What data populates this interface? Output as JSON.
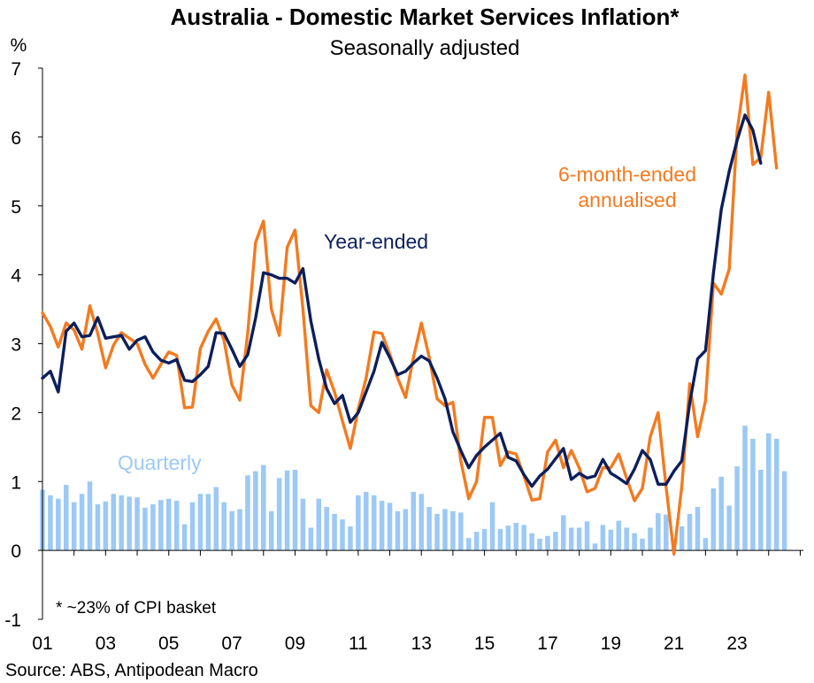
{
  "chart_data": {
    "type": "bar+line",
    "title": "Australia - Domestic Market Services Inflation*",
    "subtitle": "Seasonally adjusted",
    "ylabel": "%",
    "ylim": [
      -1,
      7
    ],
    "yticks": [
      "-1",
      "0",
      "1",
      "2",
      "3",
      "4",
      "5",
      "6",
      "7"
    ],
    "xlim": [
      2001,
      2025.1
    ],
    "xticks": [
      {
        "label": "01",
        "x": 2001
      },
      {
        "label": "03",
        "x": 2003
      },
      {
        "label": "05",
        "x": 2005
      },
      {
        "label": "07",
        "x": 2007
      },
      {
        "label": "09",
        "x": 2009
      },
      {
        "label": "11",
        "x": 2011
      },
      {
        "label": "13",
        "x": 2013
      },
      {
        "label": "15",
        "x": 2015
      },
      {
        "label": "17",
        "x": 2017
      },
      {
        "label": "19",
        "x": 2019
      },
      {
        "label": "21",
        "x": 2021
      },
      {
        "label": "23",
        "x": 2023
      }
    ],
    "footnote": "* ~23% of CPI basket",
    "source": "Source: ABS, Antipodean Macro",
    "series": [
      {
        "name": "Quarterly",
        "kind": "bar",
        "color": "#9cc9f5",
        "start": 2001.0,
        "step": 0.25,
        "values": [
          0.88,
          0.8,
          0.75,
          0.95,
          0.7,
          0.82,
          1.0,
          0.67,
          0.71,
          0.82,
          0.8,
          0.78,
          0.77,
          0.62,
          0.67,
          0.73,
          0.75,
          0.72,
          0.38,
          0.7,
          0.82,
          0.82,
          0.92,
          0.7,
          0.57,
          0.6,
          1.09,
          1.15,
          1.24,
          0.57,
          1.05,
          1.16,
          1.17,
          0.75,
          0.33,
          0.75,
          0.63,
          0.53,
          0.45,
          0.35,
          0.8,
          0.85,
          0.8,
          0.72,
          0.69,
          0.57,
          0.6,
          0.85,
          0.82,
          0.63,
          0.53,
          0.6,
          0.57,
          0.55,
          0.18,
          0.27,
          0.31,
          0.7,
          0.31,
          0.36,
          0.4,
          0.37,
          0.25,
          0.17,
          0.21,
          0.27,
          0.51,
          0.33,
          0.33,
          0.42,
          0.1,
          0.37,
          0.3,
          0.43,
          0.33,
          0.25,
          0.17,
          0.33,
          0.54,
          0.52,
          0.05,
          0.35,
          0.53,
          0.63,
          0.18,
          0.9,
          1.07,
          0.65,
          1.22,
          1.81,
          1.62,
          1.17,
          1.7,
          1.62,
          1.15
        ]
      },
      {
        "name": "6-month-ended annualised",
        "kind": "line",
        "color": "#f47a1f",
        "start": 2001.0,
        "step": 0.25,
        "values": [
          3.45,
          3.25,
          2.95,
          3.3,
          3.2,
          2.92,
          3.55,
          3.15,
          2.65,
          2.98,
          3.16,
          3.08,
          3.0,
          2.7,
          2.5,
          2.7,
          2.88,
          2.83,
          2.07,
          2.08,
          2.93,
          3.18,
          3.36,
          3.05,
          2.4,
          2.18,
          3.15,
          4.47,
          4.78,
          3.5,
          3.12,
          4.4,
          4.65,
          3.5,
          2.1,
          2.0,
          2.62,
          2.3,
          1.88,
          1.48,
          2.05,
          2.5,
          3.17,
          3.15,
          2.85,
          2.5,
          2.22,
          2.8,
          3.3,
          2.8,
          2.2,
          2.1,
          2.15,
          1.3,
          0.75,
          1.0,
          1.93,
          1.93,
          1.23,
          1.43,
          1.4,
          1.08,
          0.73,
          0.75,
          1.43,
          1.6,
          1.2,
          1.45,
          1.2,
          0.85,
          0.9,
          1.2,
          1.2,
          1.4,
          1.05,
          0.72,
          0.9,
          1.65,
          2.0,
          0.93,
          -0.05,
          0.93,
          2.42,
          1.65,
          2.17,
          3.88,
          3.72,
          4.08,
          6.08,
          6.9,
          5.6,
          5.7,
          6.65,
          5.55
        ]
      },
      {
        "name": "Year-ended",
        "kind": "line",
        "color": "#0c1f5c",
        "start": 2001.0,
        "step": 0.25,
        "values": [
          2.5,
          2.6,
          2.3,
          3.18,
          3.3,
          3.1,
          3.12,
          3.38,
          3.08,
          3.1,
          3.12,
          2.92,
          3.05,
          3.1,
          2.88,
          2.76,
          2.72,
          2.77,
          2.47,
          2.45,
          2.55,
          2.67,
          3.16,
          3.15,
          2.92,
          2.67,
          2.84,
          3.37,
          4.03,
          4.0,
          3.95,
          3.95,
          3.88,
          4.09,
          3.33,
          2.78,
          2.35,
          2.13,
          2.25,
          1.86,
          2.0,
          2.3,
          2.6,
          3.02,
          2.8,
          2.55,
          2.6,
          2.72,
          2.82,
          2.75,
          2.5,
          2.2,
          1.72,
          1.45,
          1.2,
          1.38,
          1.5,
          1.6,
          1.7,
          1.35,
          1.3,
          1.1,
          0.93,
          1.08,
          1.18,
          1.33,
          1.48,
          1.03,
          1.12,
          1.05,
          1.08,
          1.32,
          1.12,
          1.05,
          0.97,
          1.18,
          1.45,
          1.32,
          0.96,
          0.96,
          1.15,
          1.3,
          2.14,
          2.78,
          2.9,
          4.02,
          4.95,
          5.5,
          5.95,
          6.32,
          6.1,
          5.62
        ]
      }
    ],
    "annotations": [
      {
        "text": "Quarterly",
        "color": "#9cc9f5"
      },
      {
        "text": "Year-ended",
        "color": "#0c1f5c"
      },
      {
        "text": "6-month-ended",
        "color": "#f47a1f"
      },
      {
        "text": "annualised",
        "color": "#f47a1f"
      }
    ],
    "colors": {
      "axis": "#000000",
      "text": "#000000"
    }
  }
}
